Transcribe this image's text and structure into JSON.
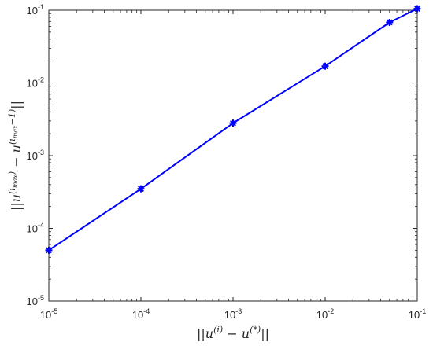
{
  "chart_data": {
    "type": "line",
    "x_scale": "log",
    "y_scale": "log",
    "xlim": [
      1e-05,
      0.1
    ],
    "ylim": [
      1e-05,
      0.1
    ],
    "x_ticks": [
      1e-05,
      0.0001,
      0.001,
      0.01,
      0.1
    ],
    "y_ticks": [
      1e-05,
      0.0001,
      0.001,
      0.01,
      0.1
    ],
    "x_tick_labels": [
      {
        "base": "10",
        "exp": "-5"
      },
      {
        "base": "10",
        "exp": "-4"
      },
      {
        "base": "10",
        "exp": "-3"
      },
      {
        "base": "10",
        "exp": "-2"
      },
      {
        "base": "10",
        "exp": "-1"
      }
    ],
    "y_tick_labels": [
      {
        "base": "10",
        "exp": "-5"
      },
      {
        "base": "10",
        "exp": "-4"
      },
      {
        "base": "10",
        "exp": "-3"
      },
      {
        "base": "10",
        "exp": "-2"
      },
      {
        "base": "10",
        "exp": "-1"
      }
    ],
    "xlabel": {
      "prefix": "||u",
      "sup": "(i)",
      "middle": " − u",
      "sup2": "(*)",
      "suffix": "||"
    },
    "ylabel": {
      "prefix": "||u",
      "sup_main": "(i",
      "sup_sub": "max",
      "sup_end": ")",
      "middle": " − u",
      "sup2_main": "(i",
      "sup2_sub": "max",
      "sup2_end": "−1)",
      "suffix": "||"
    },
    "grid": false,
    "series": [
      {
        "color": "#0000ff",
        "marker": "asterisk",
        "x": [
          1e-05,
          0.0001,
          0.001,
          0.01,
          0.05,
          0.1
        ],
        "y": [
          5e-05,
          0.00035,
          0.0028,
          0.017,
          0.068,
          0.105
        ]
      }
    ]
  }
}
